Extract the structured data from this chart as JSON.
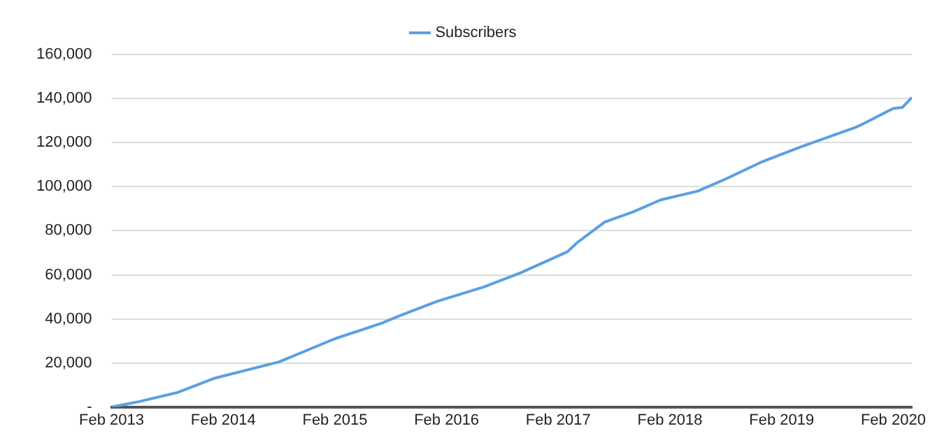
{
  "chart_data": {
    "type": "line",
    "x": [
      "2013-02",
      "2013-05",
      "2013-09",
      "2014-01",
      "2014-08",
      "2015-02",
      "2015-07",
      "2015-09",
      "2016-01",
      "2016-06",
      "2016-10",
      "2017-03",
      "2017-04",
      "2017-07",
      "2017-10",
      "2018-01",
      "2018-05",
      "2018-08",
      "2018-12",
      "2019-04",
      "2019-07",
      "2019-10",
      "2019-11",
      "2020-02",
      "2020-03",
      "2020-04"
    ],
    "series": [
      {
        "name": "Subscribers",
        "color": "#5aa0e0",
        "values": [
          0,
          2500,
          6500,
          13000,
          20500,
          31000,
          38000,
          41500,
          48000,
          54500,
          61000,
          70500,
          74500,
          84000,
          88500,
          94000,
          98000,
          103500,
          111500,
          118000,
          122500,
          127000,
          129000,
          135500,
          136000,
          140500
        ]
      }
    ],
    "xlim": [
      "2013-02",
      "2020-04"
    ],
    "xticks": [
      {
        "value": "2013-02",
        "label": "Feb 2013"
      },
      {
        "value": "2014-02",
        "label": "Feb 2014"
      },
      {
        "value": "2015-02",
        "label": "Feb 2015"
      },
      {
        "value": "2016-02",
        "label": "Feb 2016"
      },
      {
        "value": "2017-02",
        "label": "Feb 2017"
      },
      {
        "value": "2018-02",
        "label": "Feb 2018"
      },
      {
        "value": "2019-02",
        "label": "Feb 2019"
      },
      {
        "value": "2020-02",
        "label": "Feb 2020"
      }
    ],
    "ylim": [
      0,
      160000
    ],
    "yticks": [
      {
        "value": 0,
        "label": "-"
      },
      {
        "value": 20000,
        "label": "20,000"
      },
      {
        "value": 40000,
        "label": "40,000"
      },
      {
        "value": 60000,
        "label": "60,000"
      },
      {
        "value": 80000,
        "label": "80,000"
      },
      {
        "value": 100000,
        "label": "100,000"
      },
      {
        "value": 120000,
        "label": "120,000"
      },
      {
        "value": 140000,
        "label": "140,000"
      },
      {
        "value": 160000,
        "label": "160,000"
      }
    ],
    "grid": "y",
    "legend": "top",
    "marker": "none",
    "line_style": "solid"
  }
}
